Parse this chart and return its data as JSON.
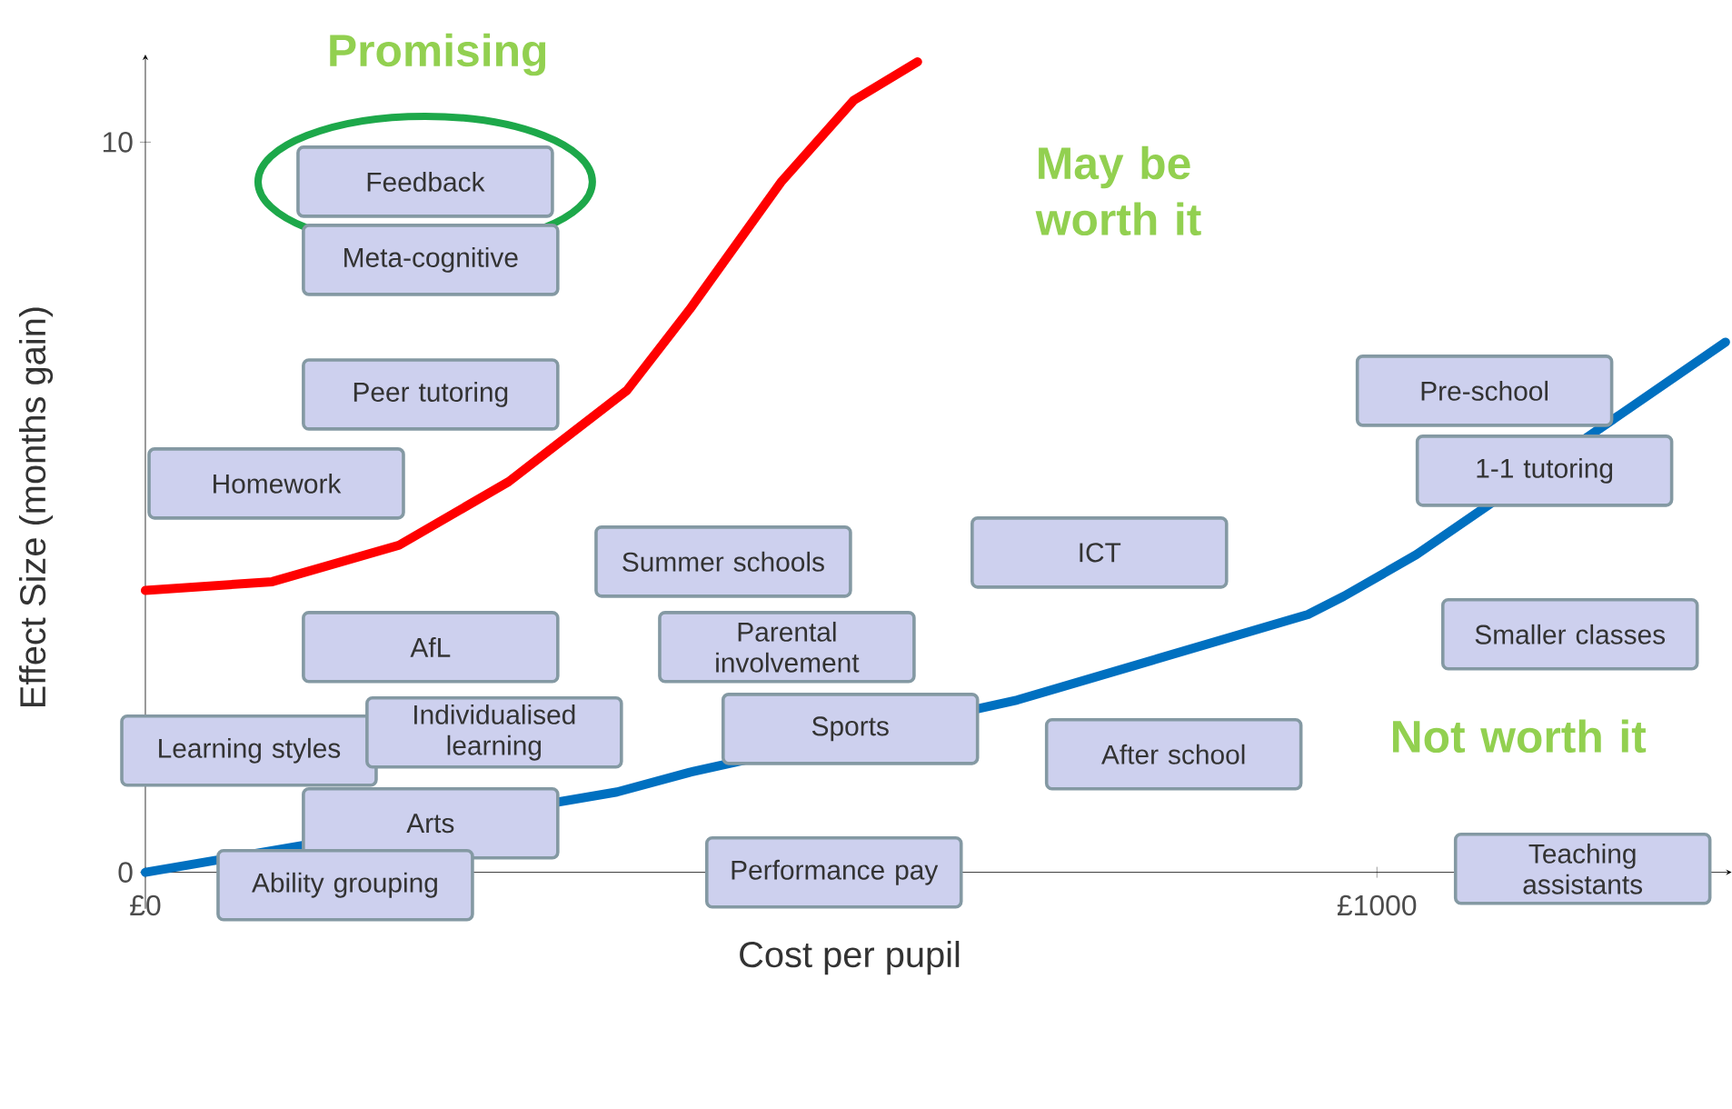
{
  "chart_data": {
    "type": "line",
    "xlabel": "Cost per pupil",
    "ylabel": "Effect Size (months gain)",
    "xlim": [
      0,
      1288
    ],
    "ylim": [
      -0.5,
      11.2
    ],
    "xticks": [
      {
        "value": 0,
        "label": "£0"
      },
      {
        "value": 1000,
        "label": "£1000"
      }
    ],
    "yticks": [
      {
        "value": 0,
        "label": "0"
      },
      {
        "value": 10,
        "label": "10"
      }
    ],
    "annotations": [
      "Promising",
      "May be worth it",
      "Not worth it",
      "Feedback",
      "Meta-cognitive",
      "Peer tutoring",
      "Homework",
      "Summer schools",
      "ICT",
      "Pre-school",
      "1-1 tutoring",
      "Smaller classes",
      "AfL",
      "Parental involvement",
      "Learning styles",
      "Individualised learning",
      "Sports",
      "After school",
      "Arts",
      "Ability grouping",
      "Performance pay",
      "Teaching assistants"
    ],
    "series": [
      {
        "color": "#ff0000",
        "x": [
          0,
          103,
          206,
          295,
          391,
          442,
          516,
          575,
          627
        ],
        "values": [
          3.86,
          3.98,
          4.48,
          5.35,
          6.6,
          7.71,
          9.45,
          10.57,
          11.1
        ]
      },
      {
        "color": "#0070c0",
        "x": [
          0,
          383,
          442,
          708,
          944,
          973,
          1032,
          1283
        ],
        "values": [
          0,
          1.1,
          1.37,
          2.36,
          3.53,
          3.78,
          4.35,
          7.26
        ]
      }
    ]
  }
}
